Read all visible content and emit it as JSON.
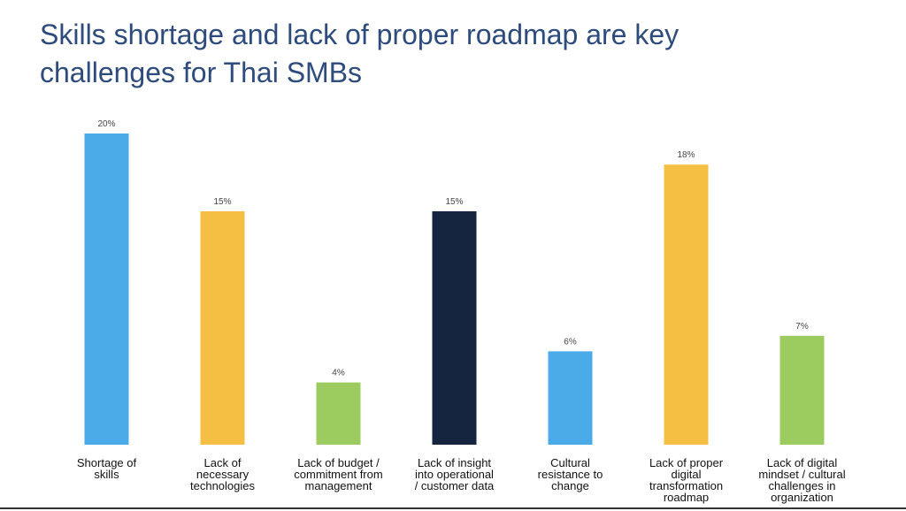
{
  "chart_data": {
    "type": "bar",
    "title": "Skills shortage and lack of proper roadmap are key challenges for Thai SMBs",
    "categories": [
      "Shortage of\nskills",
      "Lack of\nnecessary\ntechnologies",
      "Lack of budget /\ncommitment from\nmanagement",
      "Lack of insight\ninto operational\n/ customer data",
      "Cultural\nresistance to\nchange",
      "Lack of proper\ndigital\ntransformation\nroadmap",
      "Lack of digital\nmindset / cultural\nchallenges in\norganization"
    ],
    "values": [
      20,
      15,
      4,
      15,
      6,
      18,
      7
    ],
    "value_labels": [
      "20%",
      "15%",
      "4%",
      "15%",
      "6%",
      "18%",
      "7%"
    ],
    "colors": [
      "#4aabe8",
      "#f4bf42",
      "#9ccb5f",
      "#16253f",
      "#4aabe8",
      "#f4bf42",
      "#9ccb5f"
    ]
  }
}
